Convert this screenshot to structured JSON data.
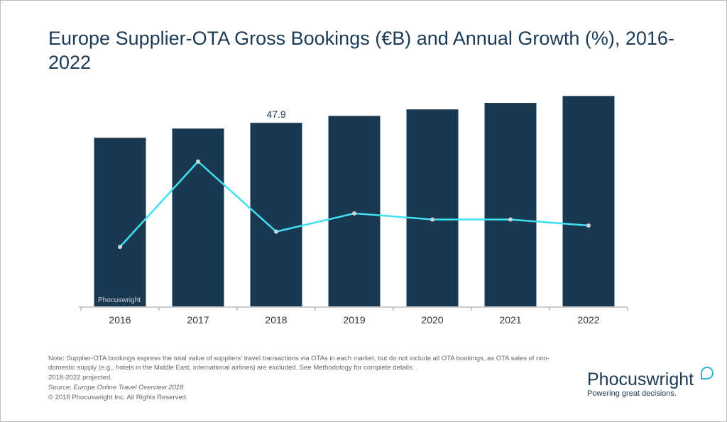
{
  "title": "Europe Supplier-OTA Gross Bookings (€B) and Annual Growth (%), 2016-2022",
  "chart_data": {
    "type": "bar",
    "title": "Europe Supplier-OTA Gross Bookings (€B) and Annual Growth (%), 2016-2022",
    "categories": [
      "2016",
      "2017",
      "2018",
      "2019",
      "2020",
      "2021",
      "2022"
    ],
    "series": [
      {
        "type": "bar",
        "values": [
          44.0,
          46.4,
          47.9,
          49.7,
          51.4,
          53.1,
          54.9
        ],
        "color": "#1a3850"
      },
      {
        "type": "line",
        "values": [
          2.7,
          5.5,
          3.2,
          3.8,
          3.6,
          3.6,
          3.4
        ],
        "color": "#3ee0f2"
      }
    ],
    "data_labels": [
      {
        "category": "2018",
        "text": "47.9"
      }
    ],
    "ylim": [
      0,
      55.7
    ],
    "y2lim": [
      0.75,
      7.75
    ],
    "grid": false,
    "watermark": "Phocuswright"
  },
  "notes": {
    "note": "Note: Supplier-OTA bookings express the total value of suppliers' travel transactions via OTAs in each market, but do not include all OTA bookings, as OTA sales of non-domestic supply (e.g., hotels in the Middle East, international airlines) are excluded. See Methodology for complete details. .",
    "projected": "2018-2022 projected.",
    "source_label": "Source: ",
    "source_title": "Europe Online Travel Overview 2018",
    "copyright": "© 2018 Phocuswright Inc. All Rights Reserved."
  },
  "logo": {
    "name": "Phocuswright",
    "tagline": "Powering great decisions."
  }
}
